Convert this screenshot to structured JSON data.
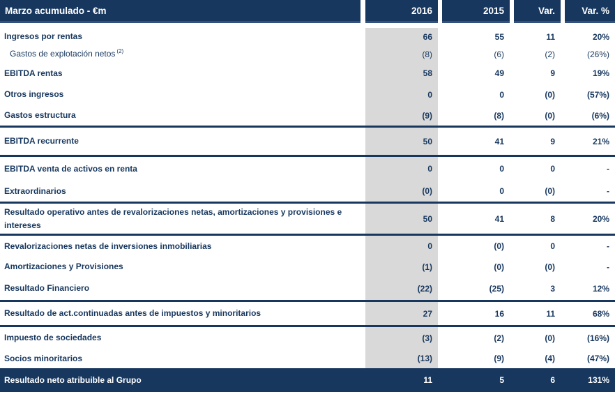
{
  "table": {
    "title": "Marzo acumulado - €m",
    "columns": [
      "2016",
      "2015",
      "Var.",
      "Var. %"
    ],
    "rows": [
      {
        "label": "Ingresos por rentas",
        "values": [
          "66",
          "55",
          "11",
          "20%"
        ]
      },
      {
        "label": "Gastos de explotación netos",
        "sup": "(2)",
        "sub": true,
        "values": [
          "(8)",
          "(6)",
          "(2)",
          "(26%)"
        ]
      },
      {
        "label": "EBITDA rentas",
        "values": [
          "58",
          "49",
          "9",
          "19%"
        ]
      },
      {
        "label": "Otros ingresos",
        "values": [
          "0",
          "0",
          "(0)",
          "(57%)"
        ]
      },
      {
        "label": "Gastos estructura",
        "values": [
          "(9)",
          "(8)",
          "(0)",
          "(6%)"
        ]
      },
      {
        "type": "separator"
      },
      {
        "label": "EBITDA recurrente",
        "values": [
          "50",
          "41",
          "9",
          "21%"
        ]
      },
      {
        "type": "separator"
      },
      {
        "label": "EBITDA venta de activos en renta",
        "values": [
          "0",
          "0",
          "0",
          "-"
        ]
      },
      {
        "label": "Extraordinarios",
        "values": [
          "(0)",
          "0",
          "(0)",
          "-"
        ]
      },
      {
        "type": "separator"
      },
      {
        "label": "Resultado operativo antes de revalorizaciones netas, amortizaciones y provisiones e intereses",
        "values": [
          "50",
          "41",
          "8",
          "20%"
        ]
      },
      {
        "type": "separator"
      },
      {
        "label": "Revalorizaciones netas de inversiones inmobiliarias",
        "values": [
          "0",
          "(0)",
          "0",
          "-"
        ]
      },
      {
        "label": "Amortizaciones y Provisiones",
        "values": [
          "(1)",
          "(0)",
          "(0)",
          "-"
        ]
      },
      {
        "label": "Resultado Financiero",
        "values": [
          "(22)",
          "(25)",
          "3",
          "12%"
        ]
      },
      {
        "type": "separator"
      },
      {
        "label": "Resultado de act.continuadas antes de impuestos y minoritarios",
        "values": [
          "27",
          "16",
          "11",
          "68%"
        ]
      },
      {
        "type": "separator"
      },
      {
        "label": "Impuesto de sociedades",
        "values": [
          "(3)",
          "(2)",
          "(0)",
          "(16%)"
        ]
      },
      {
        "label": "Socios minoritarios",
        "values": [
          "(13)",
          "(9)",
          "(4)",
          "(47%)"
        ]
      }
    ],
    "total_row": {
      "label": "Resultado neto atribuible al Grupo",
      "values": [
        "11",
        "5",
        "6",
        "131%"
      ]
    },
    "colors": {
      "header_bg": "#17375e",
      "column_highlight": "#d9d9d9",
      "text": "#17375e"
    }
  }
}
